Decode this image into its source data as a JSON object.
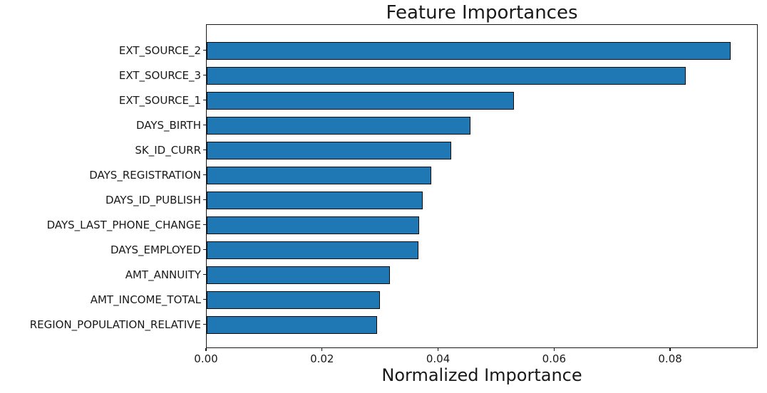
{
  "chart_data": {
    "type": "bar",
    "orientation": "horizontal",
    "title": "Feature Importances",
    "xlabel": "Normalized Importance",
    "ylabel": "",
    "categories": [
      "EXT_SOURCE_2",
      "EXT_SOURCE_3",
      "EXT_SOURCE_1",
      "DAYS_BIRTH",
      "SK_ID_CURR",
      "DAYS_REGISTRATION",
      "DAYS_ID_PUBLISH",
      "DAYS_LAST_PHONE_CHANGE",
      "DAYS_EMPLOYED",
      "AMT_ANNUITY",
      "AMT_INCOME_TOTAL",
      "REGION_POPULATION_RELATIVE"
    ],
    "values": [
      0.0906,
      0.0828,
      0.0531,
      0.0456,
      0.0423,
      0.0388,
      0.0373,
      0.0367,
      0.0366,
      0.0317,
      0.0299,
      0.0294
    ],
    "xlim": [
      0,
      0.0951
    ],
    "xticks": [
      0.0,
      0.02,
      0.04,
      0.06,
      0.08
    ],
    "xtick_labels": [
      "0.00",
      "0.02",
      "0.04",
      "0.06",
      "0.08"
    ],
    "bar_color": "#1f77b4",
    "bar_edge_color": "#0d0d0d",
    "grid": false,
    "legend_position": null
  }
}
